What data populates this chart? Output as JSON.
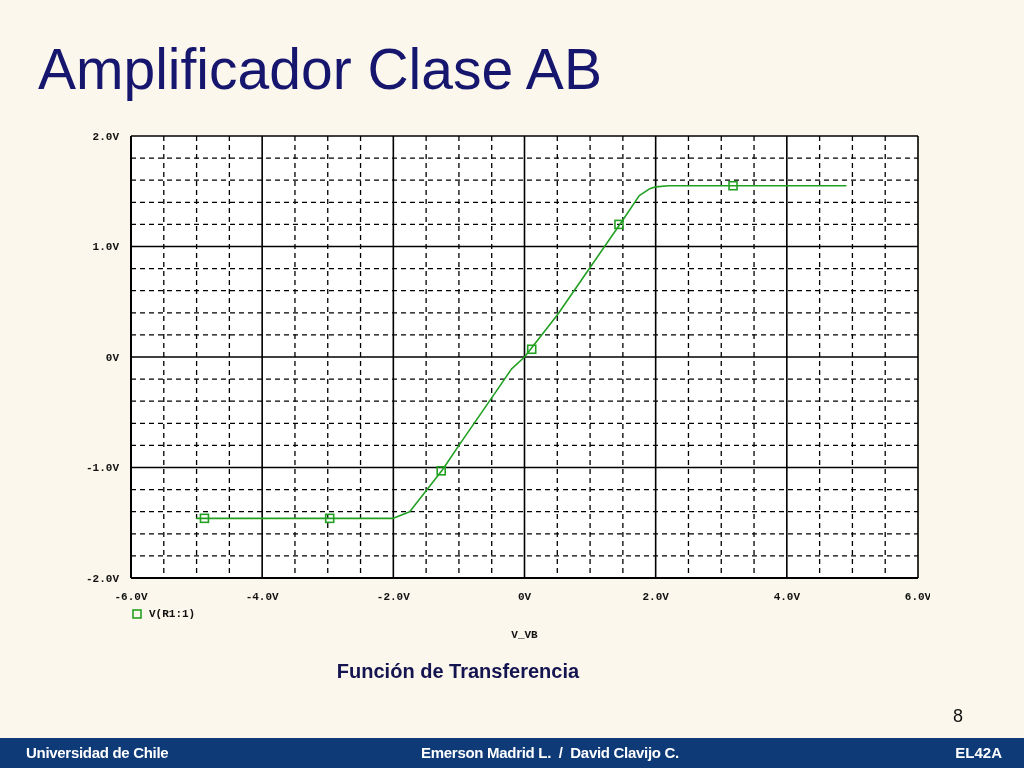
{
  "chart_data": {
    "type": "line",
    "title": "Amplificador Clase AB",
    "xlabel": "V_VB",
    "annotations": [
      "Función de Transferencia",
      "8",
      "Universidad de Chile",
      "Emerson Madrid L.  /  David Clavijo C.",
      "EL42A"
    ],
    "series": [
      {
        "name": "V(R1:1)",
        "color": "#22a022",
        "x": [
          -5.0,
          -2.0,
          -1.75,
          -1.5,
          -1.25,
          -1.0,
          -0.5,
          -0.2,
          0,
          0.5,
          1.0,
          1.5,
          1.75,
          1.9,
          2.0,
          2.2,
          4.9
        ],
        "values": [
          -1.46,
          -1.46,
          -1.4,
          -1.21,
          -1.02,
          -0.8,
          -0.37,
          -0.11,
          0,
          0.38,
          0.81,
          1.24,
          1.46,
          1.52,
          1.54,
          1.55,
          1.55
        ]
      },
      {
        "type": "scatter",
        "marker": "square",
        "color": "#22a022",
        "x": [
          -4.88,
          -2.97,
          -1.27,
          0.11,
          1.44,
          3.18
        ],
        "values": [
          -1.46,
          -1.46,
          -1.03,
          0.07,
          1.2,
          1.55
        ]
      }
    ],
    "xlim": [
      -6,
      6
    ],
    "xticks": [
      {
        "value": -6,
        "label": "-6.0V"
      },
      {
        "value": -5.5,
        "label": null
      },
      {
        "value": -5,
        "label": null
      },
      {
        "value": -4.5,
        "label": null
      },
      {
        "value": -4,
        "label": "-4.0V"
      },
      {
        "value": -3.5,
        "label": null
      },
      {
        "value": -3,
        "label": null
      },
      {
        "value": -2.5,
        "label": null
      },
      {
        "value": -2,
        "label": "-2.0V"
      },
      {
        "value": -1.5,
        "label": null
      },
      {
        "value": -1,
        "label": null
      },
      {
        "value": -0.5,
        "label": null
      },
      {
        "value": 0,
        "label": "0V"
      },
      {
        "value": 0.5,
        "label": null
      },
      {
        "value": 1,
        "label": null
      },
      {
        "value": 1.5,
        "label": null
      },
      {
        "value": 2,
        "label": "2.0V"
      },
      {
        "value": 2.5,
        "label": null
      },
      {
        "value": 3,
        "label": null
      },
      {
        "value": 3.5,
        "label": null
      },
      {
        "value": 4,
        "label": "4.0V"
      },
      {
        "value": 4.5,
        "label": null
      },
      {
        "value": 5,
        "label": null
      },
      {
        "value": 5.5,
        "label": null
      },
      {
        "value": 6,
        "label": "6.0V"
      }
    ],
    "ylim": [
      -2,
      2
    ],
    "yticks": [
      {
        "value": -2,
        "label": "-2.0V"
      },
      {
        "value": -1.8,
        "label": null
      },
      {
        "value": -1.6,
        "label": null
      },
      {
        "value": -1.4,
        "label": null
      },
      {
        "value": -1.2,
        "label": null
      },
      {
        "value": -1,
        "label": "-1.0V"
      },
      {
        "value": -0.8,
        "label": null
      },
      {
        "value": -0.6,
        "label": null
      },
      {
        "value": -0.4,
        "label": null
      },
      {
        "value": -0.2,
        "label": null
      },
      {
        "value": 0,
        "label": "0V"
      },
      {
        "value": 0.2,
        "label": null
      },
      {
        "value": 0.4,
        "label": null
      },
      {
        "value": 0.6,
        "label": null
      },
      {
        "value": 0.8,
        "label": null
      },
      {
        "value": 1,
        "label": "1.0V"
      },
      {
        "value": 1.2,
        "label": null
      },
      {
        "value": 1.4,
        "label": null
      },
      {
        "value": 1.6,
        "label": null
      },
      {
        "value": 1.8,
        "label": null
      },
      {
        "value": 2,
        "label": "2.0V"
      }
    ],
    "grid": true,
    "legend": "bottom left"
  }
}
